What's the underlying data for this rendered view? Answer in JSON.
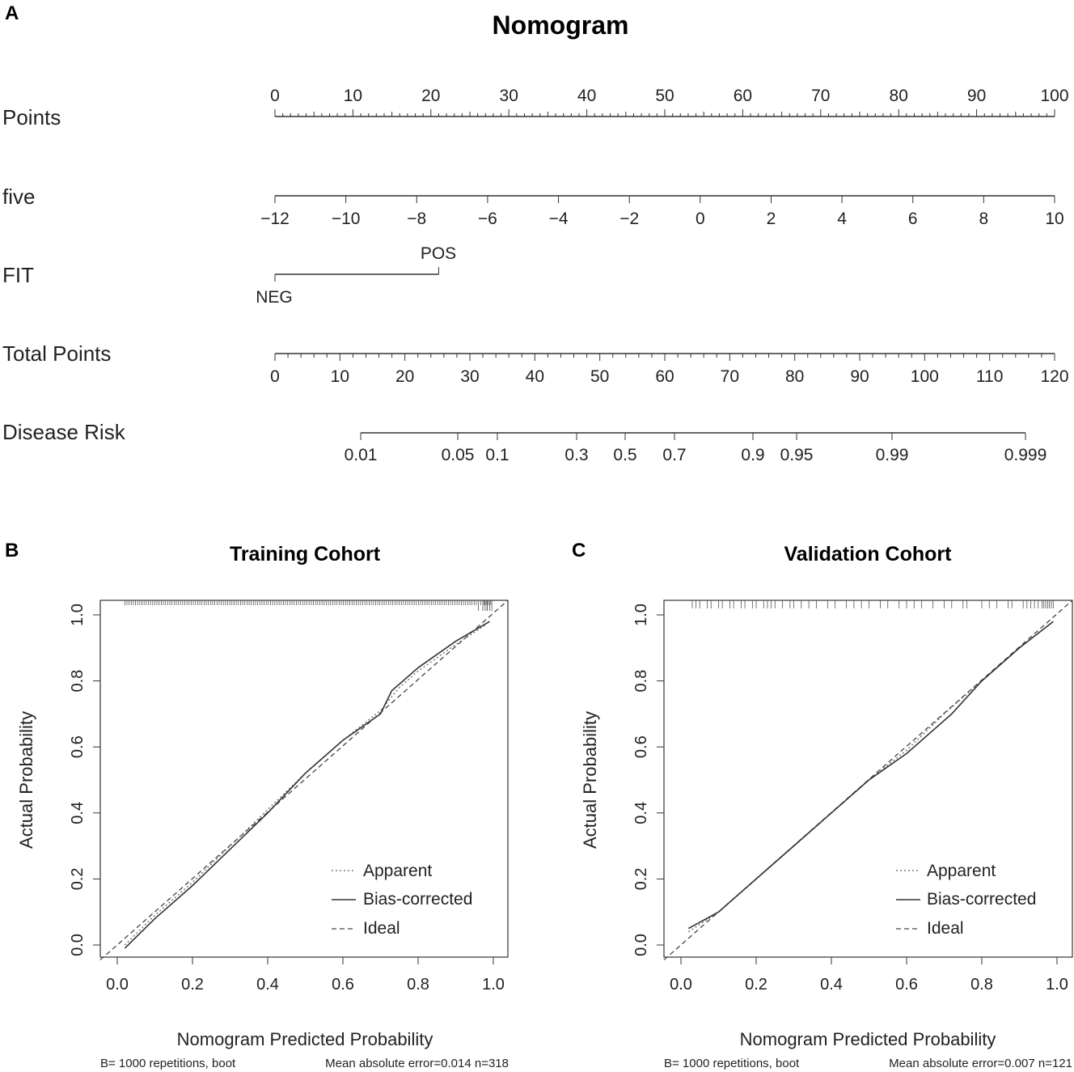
{
  "panels": {
    "a": "A",
    "b": "B",
    "c": "C"
  },
  "chart_data": [
    {
      "type": "nomogram",
      "title": "Nomogram",
      "rows": [
        {
          "label": "Points",
          "min": 0,
          "max": 100,
          "ticks": [
            "0",
            "10",
            "20",
            "30",
            "40",
            "50",
            "60",
            "70",
            "80",
            "90",
            "100"
          ]
        },
        {
          "label": "five",
          "min": -12,
          "max": 10,
          "ticks": [
            "−12",
            "−10",
            "−8",
            "−6",
            "−4",
            "−2",
            "0",
            "2",
            "4",
            "6",
            "8",
            "10"
          ]
        },
        {
          "label": "FIT",
          "levels": [
            {
              "name": "NEG",
              "points": 0
            },
            {
              "name": "POS",
              "points": 21
            }
          ]
        },
        {
          "label": "Total Points",
          "min": 0,
          "max": 120,
          "ticks": [
            "0",
            "10",
            "20",
            "30",
            "40",
            "50",
            "60",
            "70",
            "80",
            "90",
            "100",
            "110",
            "120"
          ]
        },
        {
          "label": "Disease Risk",
          "ticks": [
            "0.01",
            "0.05",
            "0.1",
            "0.3",
            "0.5",
            "0.7",
            "0.9",
            "0.95",
            "0.99",
            "0.999"
          ]
        }
      ]
    },
    {
      "type": "line",
      "title": "Training Cohort",
      "xlabel": "Nomogram Predicted Probability",
      "ylabel": "Actual Probability",
      "xlim": [
        0,
        1
      ],
      "ylim": [
        0,
        1
      ],
      "x_ticks": [
        "0.0",
        "0.2",
        "0.4",
        "0.6",
        "0.8",
        "1.0"
      ],
      "y_ticks": [
        "0.0",
        "0.2",
        "0.4",
        "0.6",
        "0.8",
        "1.0"
      ],
      "legend": [
        "Apparent",
        "Bias-corrected",
        "Ideal"
      ],
      "series": [
        {
          "name": "Apparent",
          "x": [
            0.02,
            0.1,
            0.2,
            0.3,
            0.4,
            0.5,
            0.6,
            0.7,
            0.75,
            0.8,
            0.9,
            0.98
          ],
          "y": [
            0.0,
            0.09,
            0.19,
            0.3,
            0.41,
            0.52,
            0.62,
            0.71,
            0.78,
            0.83,
            0.91,
            0.97
          ]
        },
        {
          "name": "Bias-corrected",
          "x": [
            0.02,
            0.1,
            0.2,
            0.3,
            0.4,
            0.5,
            0.6,
            0.7,
            0.73,
            0.8,
            0.9,
            0.99
          ],
          "y": [
            -0.01,
            0.08,
            0.18,
            0.29,
            0.4,
            0.52,
            0.62,
            0.7,
            0.77,
            0.84,
            0.92,
            0.98
          ]
        },
        {
          "name": "Ideal",
          "x": [
            0,
            1
          ],
          "y": [
            0,
            1
          ]
        }
      ],
      "footnote_left": "B= 1000 repetitions, boot",
      "footnote_right": "Mean absolute error=0.014 n=318"
    },
    {
      "type": "line",
      "title": "Validation Cohort",
      "xlabel": "Nomogram Predicted Probability",
      "ylabel": "Actual Probability",
      "xlim": [
        0,
        1
      ],
      "ylim": [
        0,
        1
      ],
      "x_ticks": [
        "0.0",
        "0.2",
        "0.4",
        "0.6",
        "0.8",
        "1.0"
      ],
      "y_ticks": [
        "0.0",
        "0.2",
        "0.4",
        "0.6",
        "0.8",
        "1.0"
      ],
      "legend": [
        "Apparent",
        "Bias-corrected",
        "Ideal"
      ],
      "series": [
        {
          "name": "Apparent",
          "x": [
            0.02,
            0.1,
            0.2,
            0.3,
            0.4,
            0.5,
            0.6,
            0.7,
            0.8,
            0.9,
            0.99
          ],
          "y": [
            0.04,
            0.1,
            0.2,
            0.3,
            0.4,
            0.5,
            0.59,
            0.7,
            0.8,
            0.9,
            0.98
          ]
        },
        {
          "name": "Bias-corrected",
          "x": [
            0.02,
            0.1,
            0.2,
            0.3,
            0.4,
            0.5,
            0.6,
            0.72,
            0.8,
            0.9,
            0.99
          ],
          "y": [
            0.05,
            0.1,
            0.2,
            0.3,
            0.4,
            0.5,
            0.58,
            0.7,
            0.8,
            0.9,
            0.98
          ]
        },
        {
          "name": "Ideal",
          "x": [
            0,
            1
          ],
          "y": [
            0,
            1
          ]
        }
      ],
      "footnote_left": "B= 1000 repetitions, boot",
      "footnote_right": "Mean absolute error=0.007 n=121"
    }
  ]
}
